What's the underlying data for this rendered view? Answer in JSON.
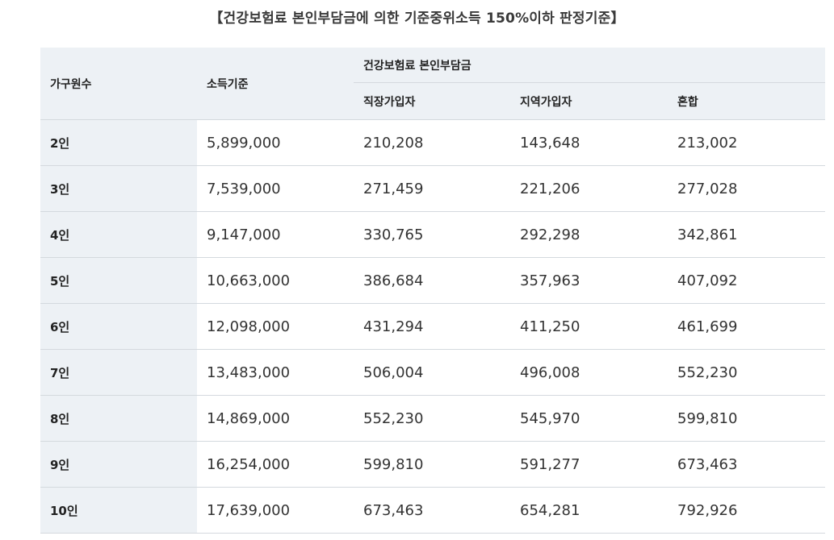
{
  "title": "【건강보험료 본인부담금에 의한 기준중위소득 150%이하 판정기준】",
  "table": {
    "headers": {
      "household": "가구원수",
      "income": "소득기준",
      "group": "건강보험료 본인부담금",
      "employee": "직장가입자",
      "regional": "지역가입자",
      "mixed": "혼합"
    },
    "rows": [
      {
        "household": "2인",
        "income": "5,899,000",
        "employee": "210,208",
        "regional": "143,648",
        "mixed": "213,002"
      },
      {
        "household": "3인",
        "income": "7,539,000",
        "employee": "271,459",
        "regional": "221,206",
        "mixed": "277,028"
      },
      {
        "household": "4인",
        "income": "9,147,000",
        "employee": "330,765",
        "regional": "292,298",
        "mixed": "342,861"
      },
      {
        "household": "5인",
        "income": "10,663,000",
        "employee": "386,684",
        "regional": "357,963",
        "mixed": "407,092"
      },
      {
        "household": "6인",
        "income": "12,098,000",
        "employee": "431,294",
        "regional": "411,250",
        "mixed": "461,699"
      },
      {
        "household": "7인",
        "income": "13,483,000",
        "employee": "506,004",
        "regional": "496,008",
        "mixed": "552,230"
      },
      {
        "household": "8인",
        "income": "14,869,000",
        "employee": "552,230",
        "regional": "545,970",
        "mixed": "599,810"
      },
      {
        "household": "9인",
        "income": "16,254,000",
        "employee": "599,810",
        "regional": "591,277",
        "mixed": "673,463"
      },
      {
        "household": "10인",
        "income": "17,639,000",
        "employee": "673,463",
        "regional": "654,281",
        "mixed": "792,926"
      }
    ]
  }
}
